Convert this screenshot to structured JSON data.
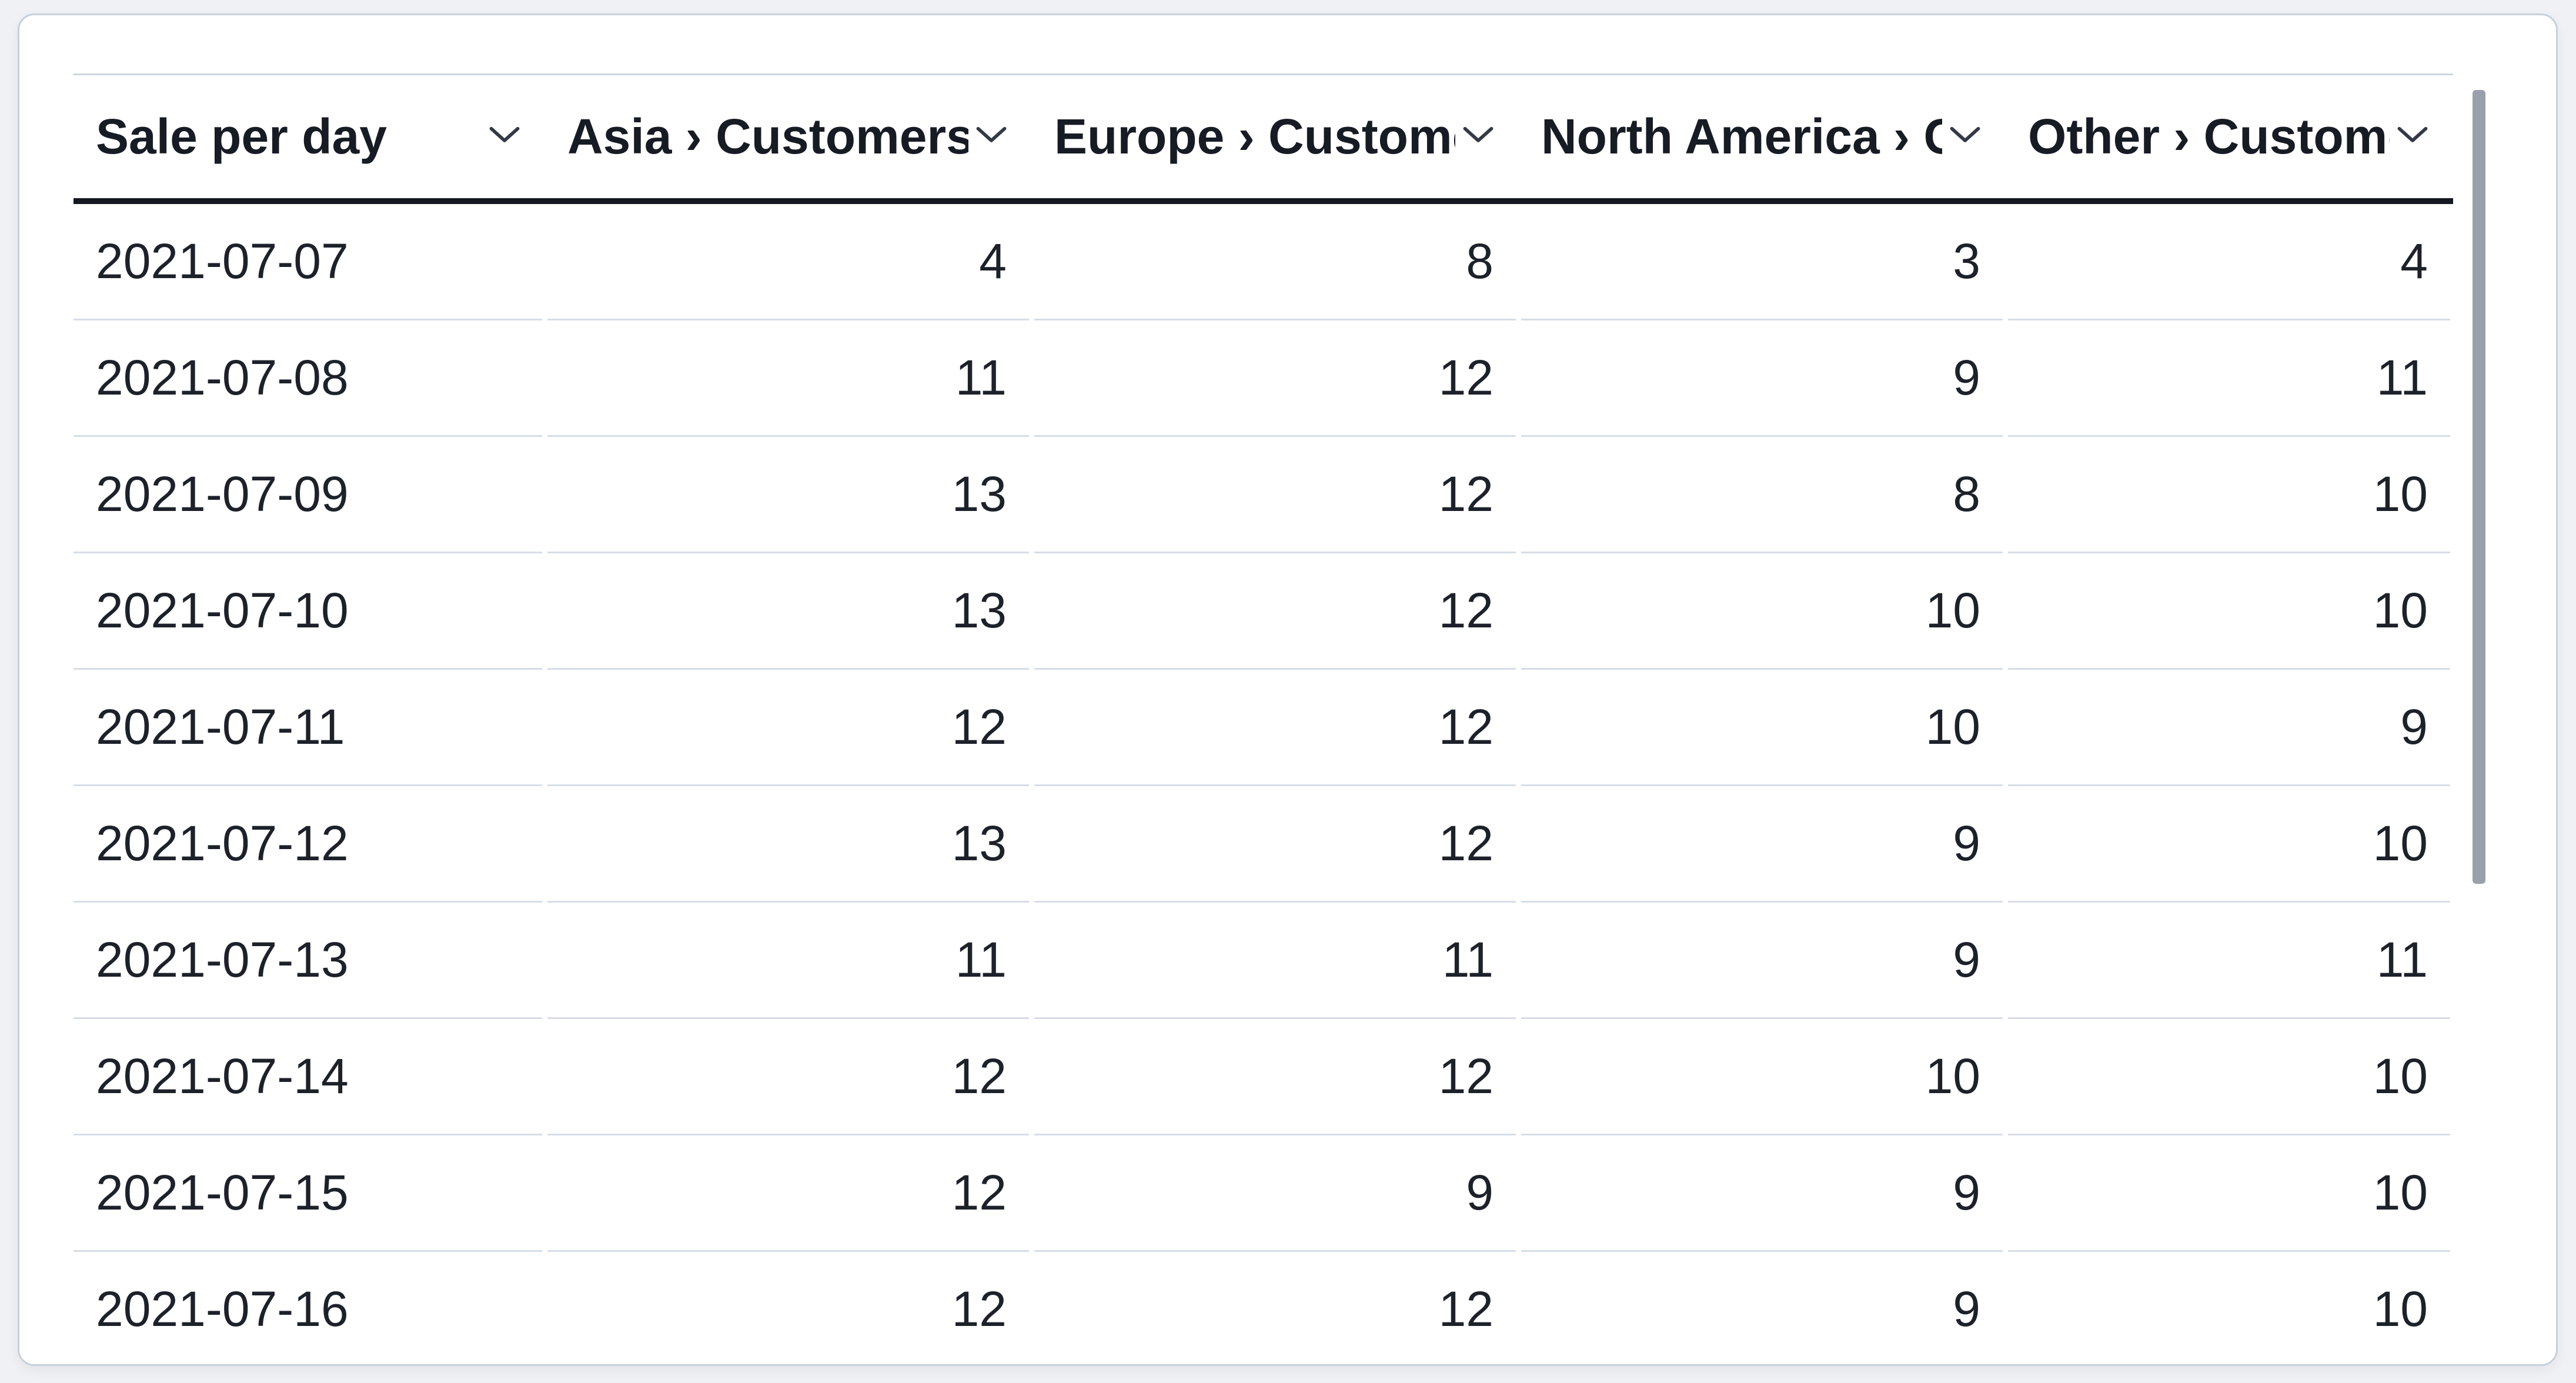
{
  "table": {
    "columns": [
      {
        "id": "sale-per-day",
        "label": "Sale per day"
      },
      {
        "id": "asia-customers",
        "label": "Asia › Customers"
      },
      {
        "id": "europe-customers",
        "label": "Europe › Customers"
      },
      {
        "id": "north-america-customers",
        "label": "North America › Customers"
      },
      {
        "id": "other-customers",
        "label": "Other › Customers"
      }
    ],
    "rows": [
      {
        "cells": [
          "2021-07-07",
          4,
          8,
          3,
          4
        ]
      },
      {
        "cells": [
          "2021-07-08",
          11,
          12,
          9,
          11
        ]
      },
      {
        "cells": [
          "2021-07-09",
          13,
          12,
          8,
          10
        ]
      },
      {
        "cells": [
          "2021-07-10",
          13,
          12,
          10,
          10
        ]
      },
      {
        "cells": [
          "2021-07-11",
          12,
          12,
          10,
          9
        ]
      },
      {
        "cells": [
          "2021-07-12",
          13,
          12,
          9,
          10
        ]
      },
      {
        "cells": [
          "2021-07-13",
          11,
          11,
          9,
          11
        ]
      },
      {
        "cells": [
          "2021-07-14",
          12,
          12,
          10,
          10
        ]
      },
      {
        "cells": [
          "2021-07-15",
          12,
          9,
          9,
          10
        ]
      },
      {
        "cells": [
          "2021-07-16",
          12,
          12,
          9,
          10
        ]
      }
    ]
  },
  "icons": {
    "header_sort": "chevron-down-icon"
  },
  "colors": {
    "page_bg": "#eff1f4",
    "card_bg": "#ffffff",
    "card_border": "#c7d0dc",
    "header_underline": "#151821",
    "row_divider": "#d6dde8",
    "text": "#1d212a",
    "scrollbar_thumb": "#9aa0aa"
  }
}
